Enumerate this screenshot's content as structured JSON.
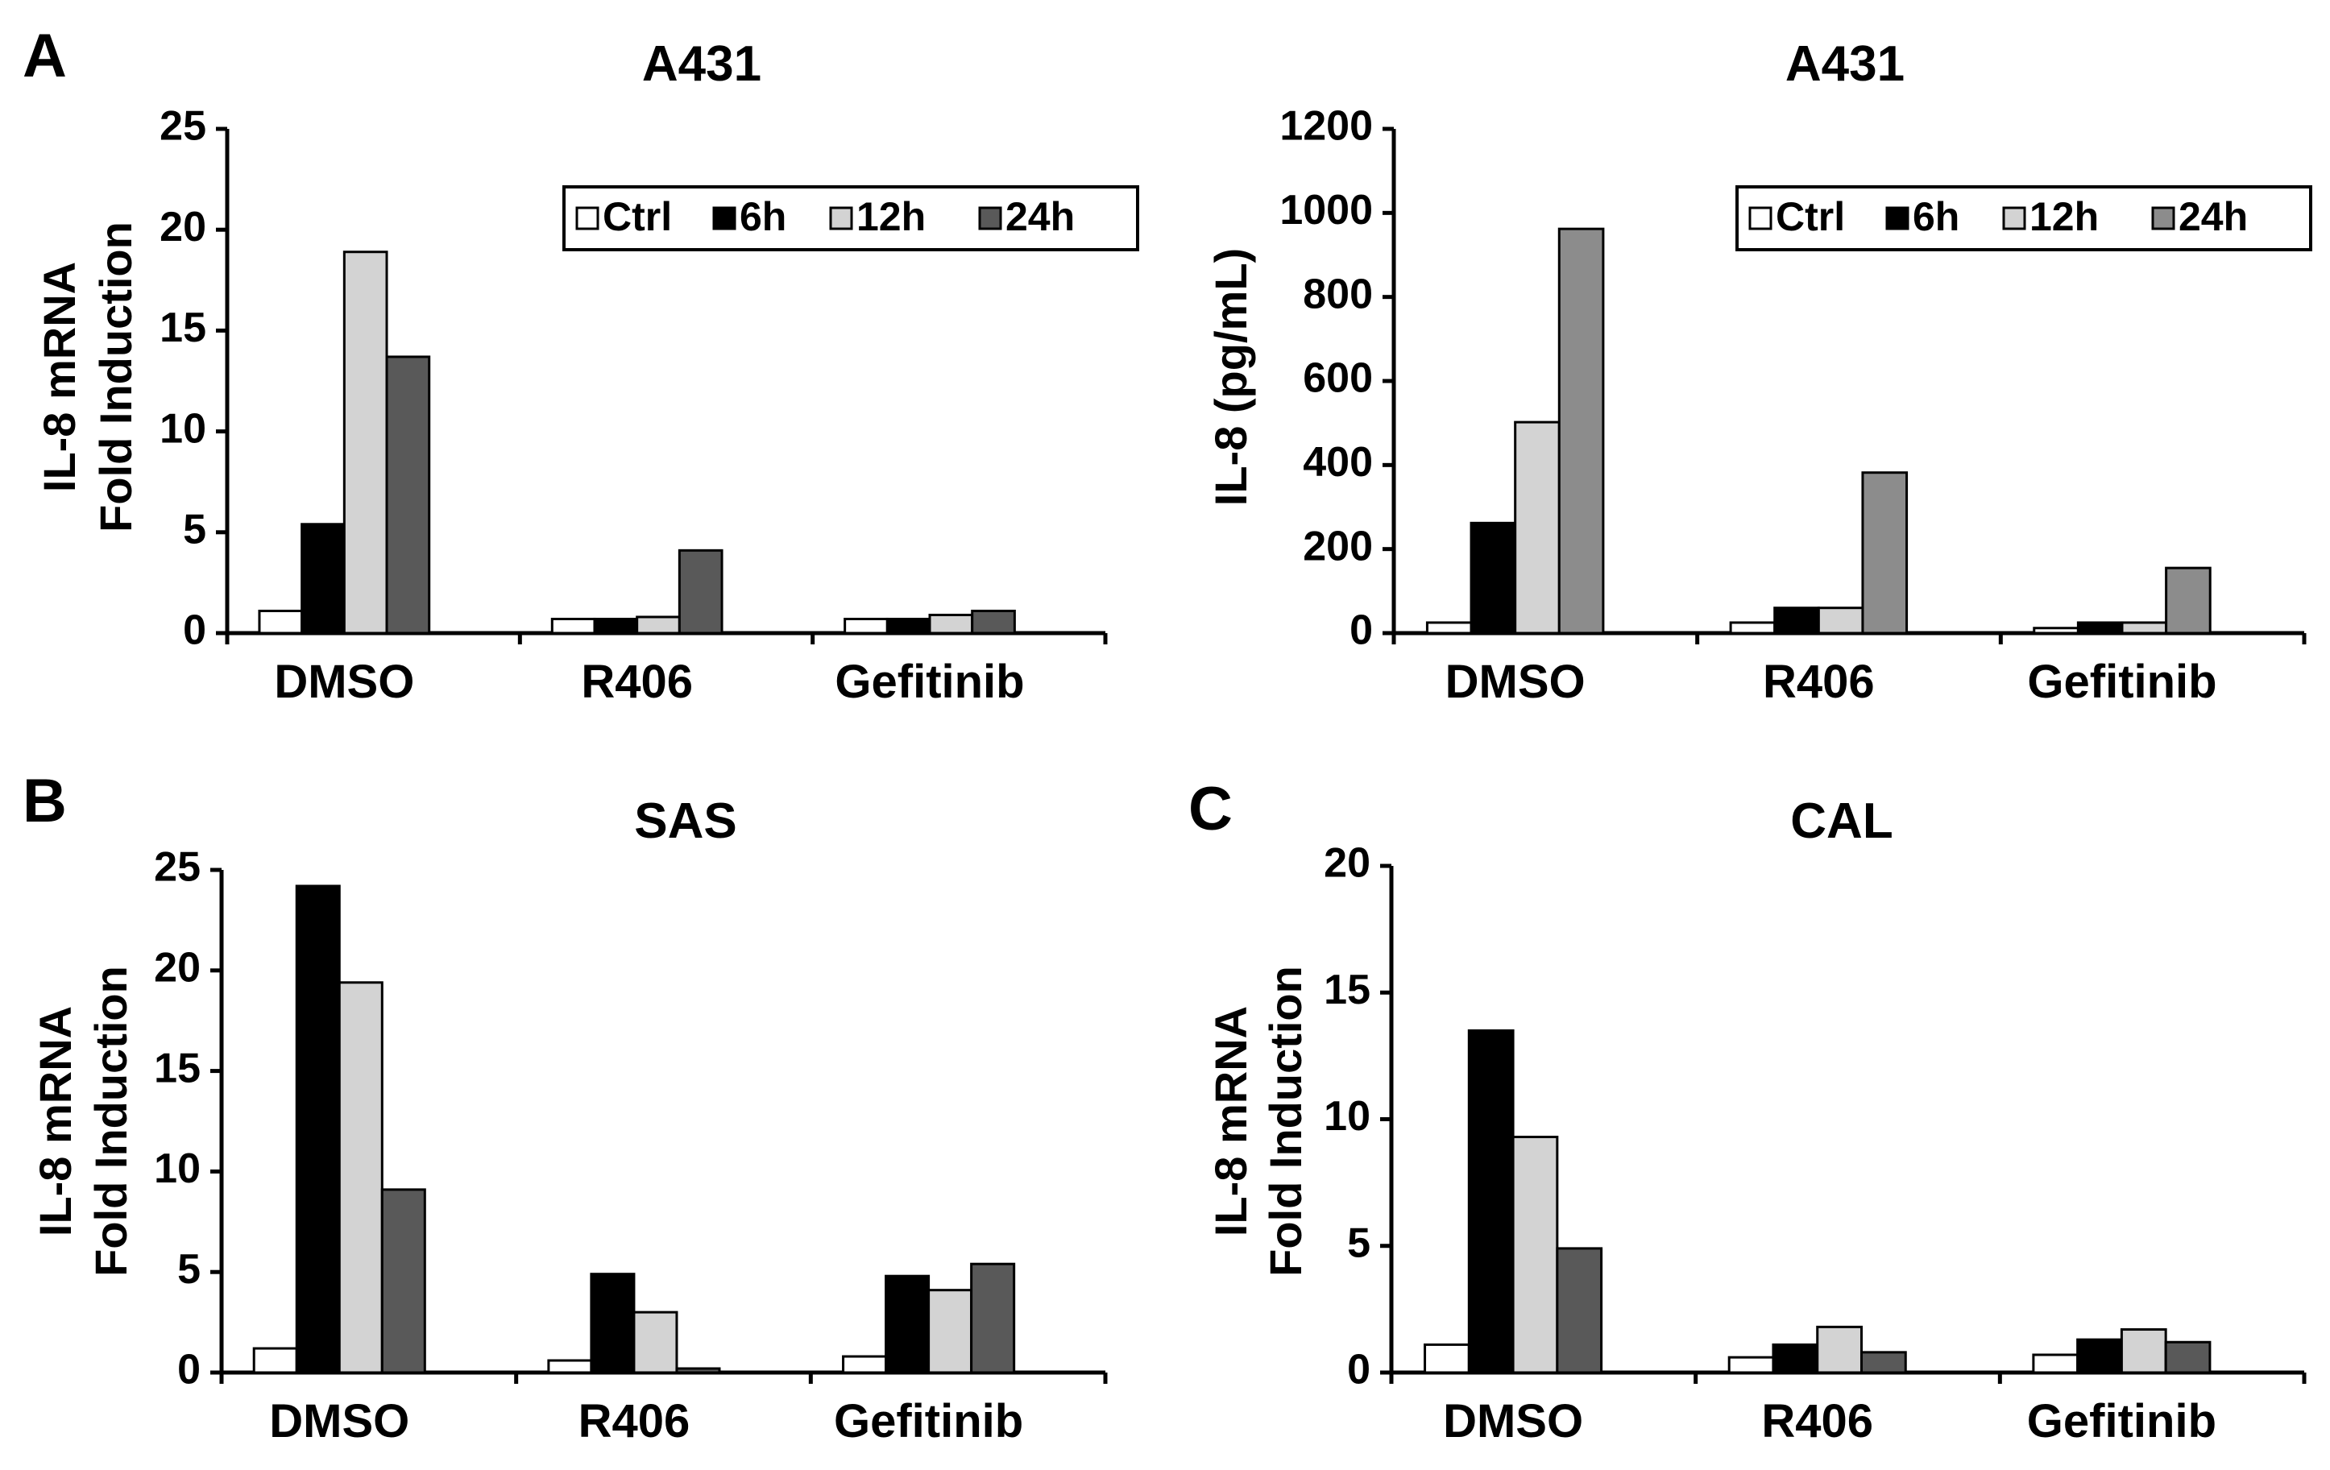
{
  "colors": {
    "Ctrl": "#ffffff",
    "6h": "#000000",
    "12h": "#d3d3d3",
    "24h_dark": "#595959",
    "24h_mid": "#8c8c8c",
    "axis": "#000000"
  },
  "chart_data": [
    {
      "panel_label": "A",
      "type": "bar",
      "title": "A431",
      "ylabel_line1": "IL-8 mRNA",
      "ylabel_line2": "Fold Induction",
      "ylabel": "IL-8 mRNA Fold Induction",
      "xlabel": "",
      "ylim": [
        0,
        25
      ],
      "yticks": [
        0,
        5,
        10,
        15,
        20,
        25
      ],
      "ytick_labels": [
        "0",
        "5",
        "10",
        "15",
        "20",
        "25"
      ],
      "categories": [
        "DMSO",
        "R406",
        "Gefitinib"
      ],
      "legend": {
        "entries": [
          "Ctrl",
          "6h",
          "12h",
          "24h"
        ],
        "position": "top-right"
      },
      "series": [
        {
          "name": "Ctrl",
          "color_key": "Ctrl",
          "values": [
            1.1,
            0.7,
            0.7
          ]
        },
        {
          "name": "6h",
          "color_key": "6h",
          "values": [
            5.4,
            0.7,
            0.7
          ]
        },
        {
          "name": "12h",
          "color_key": "12h",
          "values": [
            18.9,
            0.8,
            0.9
          ]
        },
        {
          "name": "24h",
          "color_key": "24h_dark",
          "values": [
            13.7,
            4.1,
            1.1
          ]
        }
      ]
    },
    {
      "panel_label": "",
      "type": "bar",
      "title": "A431",
      "ylabel_line1": "IL-8 (pg/mL)",
      "ylabel_line2": "",
      "ylabel": "IL-8 (pg/mL)",
      "xlabel": "",
      "ylim": [
        0,
        1200
      ],
      "yticks": [
        0,
        200,
        400,
        600,
        800,
        1000,
        1200
      ],
      "ytick_labels": [
        "0",
        "200",
        "400",
        "600",
        "800",
        "1000",
        "1200"
      ],
      "categories": [
        "DMSO",
        "R406",
        "Gefitinib"
      ],
      "legend": {
        "entries": [
          "Ctrl",
          "6h",
          "12h",
          "24h"
        ],
        "position": "top-right"
      },
      "series": [
        {
          "name": "Ctrl",
          "color_key": "Ctrl",
          "values": [
            25,
            25,
            12
          ]
        },
        {
          "name": "6h",
          "color_key": "6h",
          "values": [
            262,
            60,
            25
          ]
        },
        {
          "name": "12h",
          "color_key": "12h",
          "values": [
            502,
            60,
            25
          ]
        },
        {
          "name": "24h",
          "color_key": "24h_mid",
          "values": [
            962,
            382,
            155
          ]
        }
      ]
    },
    {
      "panel_label": "B",
      "type": "bar",
      "title": "SAS",
      "ylabel_line1": "IL-8 mRNA",
      "ylabel_line2": "Fold Induction",
      "ylabel": "IL-8 mRNA Fold Induction",
      "xlabel": "",
      "ylim": [
        0,
        25
      ],
      "yticks": [
        0,
        5,
        10,
        15,
        20,
        25
      ],
      "ytick_labels": [
        "0",
        "5",
        "10",
        "15",
        "20",
        "25"
      ],
      "categories": [
        "DMSO",
        "R406",
        "Gefitinib"
      ],
      "legend": null,
      "series": [
        {
          "name": "Ctrl",
          "color_key": "Ctrl",
          "values": [
            1.2,
            0.6,
            0.8
          ]
        },
        {
          "name": "6h",
          "color_key": "6h",
          "values": [
            24.2,
            4.9,
            4.8
          ]
        },
        {
          "name": "12h",
          "color_key": "12h",
          "values": [
            19.4,
            3.0,
            4.1
          ]
        },
        {
          "name": "24h",
          "color_key": "24h_dark",
          "values": [
            9.1,
            0.2,
            5.4
          ]
        }
      ]
    },
    {
      "panel_label": "C",
      "type": "bar",
      "title": "CAL",
      "ylabel_line1": "IL-8 mRNA",
      "ylabel_line2": "Fold Induction",
      "ylabel": "IL-8 mRNA Fold Induction",
      "xlabel": "",
      "ylim": [
        0,
        20
      ],
      "yticks": [
        0,
        5,
        10,
        15,
        20
      ],
      "ytick_labels": [
        "0",
        "5",
        "10",
        "15",
        "20"
      ],
      "categories": [
        "DMSO",
        "R406",
        "Gefitinib"
      ],
      "legend": null,
      "series": [
        {
          "name": "Ctrl",
          "color_key": "Ctrl",
          "values": [
            1.1,
            0.6,
            0.7
          ]
        },
        {
          "name": "6h",
          "color_key": "6h",
          "values": [
            13.5,
            1.1,
            1.3
          ]
        },
        {
          "name": "12h",
          "color_key": "12h",
          "values": [
            9.3,
            1.8,
            1.7
          ]
        },
        {
          "name": "24h",
          "color_key": "24h_dark",
          "values": [
            4.9,
            0.8,
            1.2
          ]
        }
      ]
    }
  ]
}
